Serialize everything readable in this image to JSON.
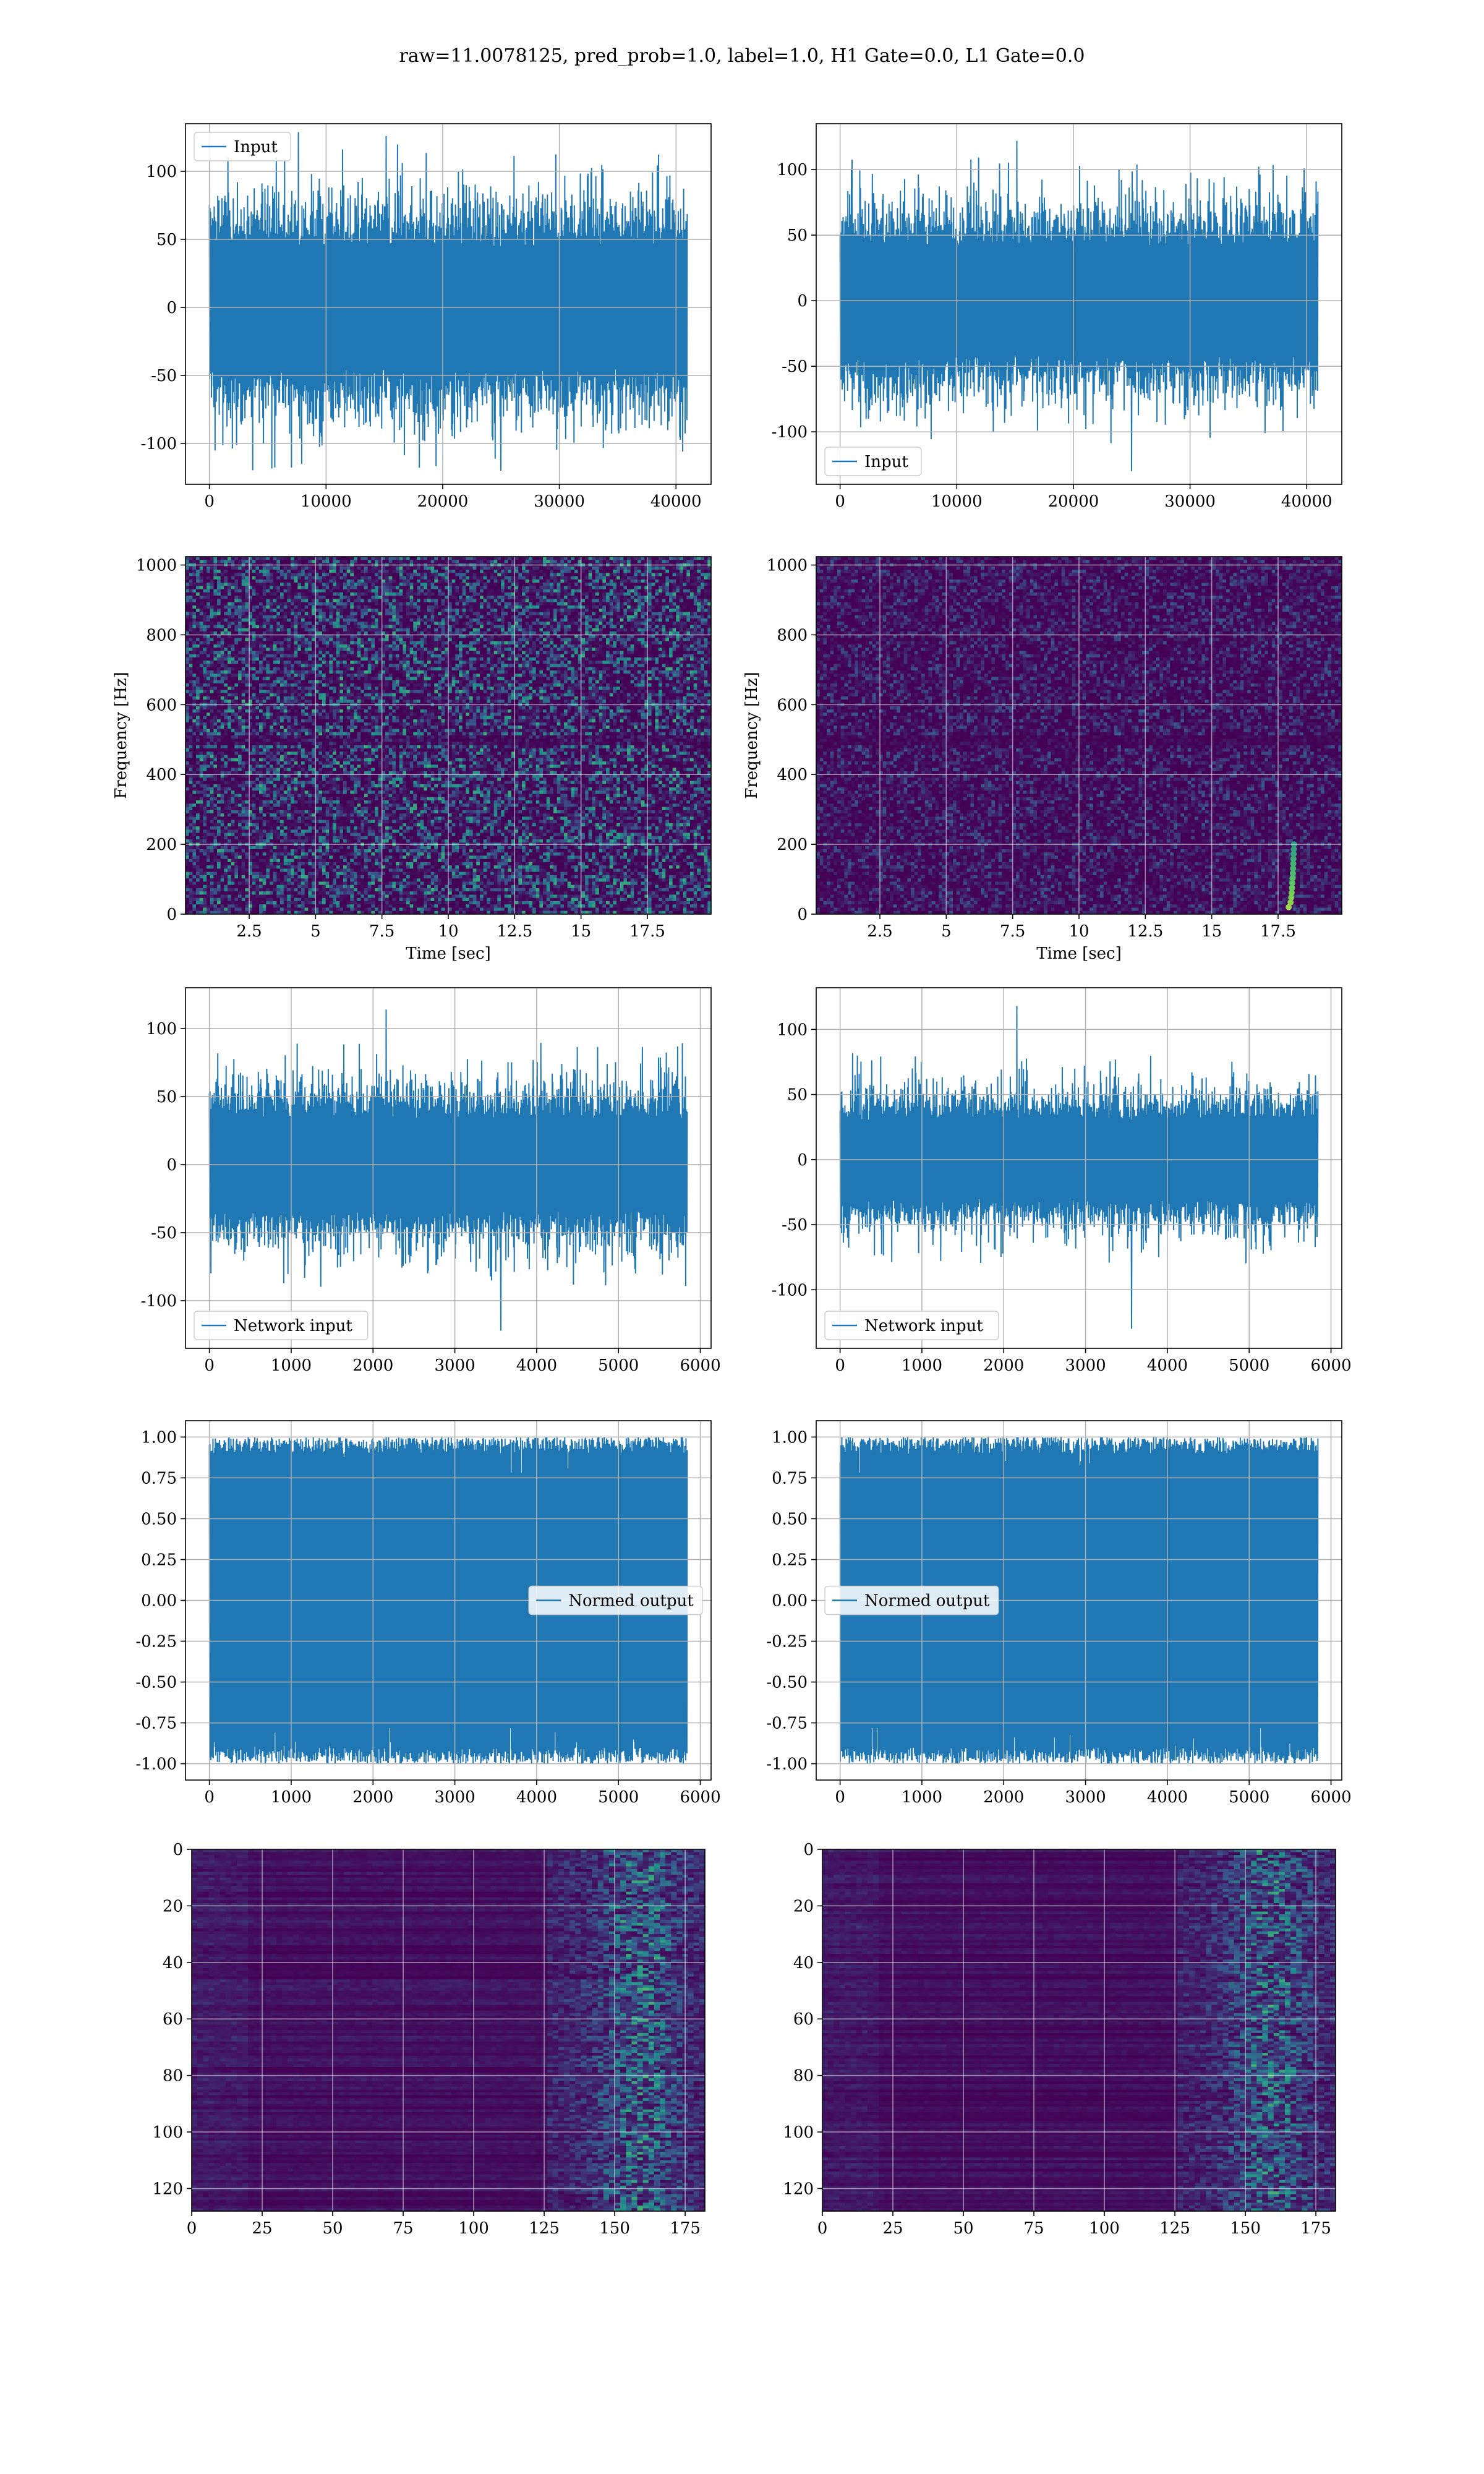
{
  "figure": {
    "suptitle": "raw=11.0078125, pred_prob=1.0, label=1.0, H1 Gate=0.0, L1 Gate=0.0"
  },
  "colors": {
    "series": "#1f77b4",
    "grid": "#b0b0b0",
    "viridis_dark": "#440154",
    "viridis_blue": "#3b528b",
    "viridis_teal": "#21918c",
    "viridis_green": "#5ec962",
    "viridis_yellow": "#fde725"
  },
  "chart_data": [
    {
      "type": "line",
      "row": 1,
      "col": 1,
      "series": [
        {
          "name": "Input",
          "x_range": [
            0,
            40960
          ],
          "amplitude_typical": 60,
          "peak_max": 126,
          "peak_min": -120
        }
      ],
      "legend": "top-left",
      "xlim": [
        -2048,
        43008
      ],
      "ylim": [
        -130,
        135
      ],
      "xticks": [
        0,
        10000,
        20000,
        30000,
        40000
      ],
      "yticks": [
        -100,
        -50,
        0,
        50,
        100
      ],
      "xlabel": "",
      "ylabel": "",
      "grid": true
    },
    {
      "type": "line",
      "row": 1,
      "col": 2,
      "series": [
        {
          "name": "Input",
          "x_range": [
            0,
            40960
          ],
          "amplitude_typical": 55,
          "peak_max": 122,
          "peak_min": -130
        }
      ],
      "legend": "bottom-left",
      "xlim": [
        -2048,
        43008
      ],
      "ylim": [
        -140,
        135
      ],
      "xticks": [
        0,
        10000,
        20000,
        30000,
        40000
      ],
      "yticks": [
        -100,
        -50,
        0,
        50,
        100
      ],
      "xlabel": "",
      "ylabel": "",
      "grid": true
    },
    {
      "type": "heatmap",
      "row": 2,
      "col": 1,
      "description_colormap": "viridis",
      "xlim": [
        0.1,
        19.9
      ],
      "ylim": [
        0,
        1024
      ],
      "xticks": [
        2.5,
        5.0,
        7.5,
        10.0,
        12.5,
        15.0,
        17.5
      ],
      "yticks": [
        0,
        200,
        400,
        600,
        800,
        1000
      ],
      "xlabel": "Time [sec]",
      "ylabel": "Frequency [Hz]",
      "grid": true,
      "chirp": null
    },
    {
      "type": "heatmap",
      "row": 2,
      "col": 2,
      "description_colormap": "viridis",
      "xlim": [
        0.1,
        19.9
      ],
      "ylim": [
        0,
        1024
      ],
      "xticks": [
        2.5,
        5.0,
        7.5,
        10.0,
        12.5,
        15.0,
        17.5
      ],
      "yticks": [
        0,
        200,
        400,
        600,
        800,
        1000
      ],
      "xlabel": "Time [sec]",
      "ylabel": "Frequency [Hz]",
      "grid": true,
      "chirp": {
        "t_start": 17.9,
        "t_end": 18.1,
        "f_start": 20,
        "f_end": 200
      }
    },
    {
      "type": "line",
      "row": 3,
      "col": 1,
      "series": [
        {
          "name": "Network input",
          "x_range": [
            0,
            5840
          ],
          "amplitude_typical": 45,
          "peak_max": 114,
          "peak_min": -122
        }
      ],
      "legend": "bottom-left",
      "xlim": [
        -292,
        6132
      ],
      "ylim": [
        -135,
        130
      ],
      "xticks": [
        0,
        1000,
        2000,
        3000,
        4000,
        5000,
        6000
      ],
      "yticks": [
        -100,
        -50,
        0,
        50,
        100
      ],
      "xlabel": "",
      "ylabel": "",
      "grid": true
    },
    {
      "type": "line",
      "row": 3,
      "col": 2,
      "series": [
        {
          "name": "Network input",
          "x_range": [
            0,
            5840
          ],
          "amplitude_typical": 40,
          "peak_max": 118,
          "peak_min": -130
        }
      ],
      "legend": "bottom-left",
      "xlim": [
        -292,
        6132
      ],
      "ylim": [
        -145,
        132
      ],
      "xticks": [
        0,
        1000,
        2000,
        3000,
        4000,
        5000,
        6000
      ],
      "yticks": [
        -100,
        -50,
        0,
        50,
        100
      ],
      "xlabel": "",
      "ylabel": "",
      "grid": true
    },
    {
      "type": "line",
      "row": 4,
      "col": 1,
      "series": [
        {
          "name": "Normed output",
          "x_range": [
            0,
            5840
          ],
          "amplitude_typical": 0.92,
          "peak_max": 1.0,
          "peak_min": -1.0
        }
      ],
      "legend": "center-right",
      "xlim": [
        -292,
        6132
      ],
      "ylim": [
        -1.1,
        1.1
      ],
      "xticks": [
        0,
        1000,
        2000,
        3000,
        4000,
        5000,
        6000
      ],
      "yticks": [
        -1.0,
        -0.75,
        -0.5,
        -0.25,
        0.0,
        0.25,
        0.5,
        0.75,
        1.0
      ],
      "xlabel": "",
      "ylabel": "",
      "grid": true
    },
    {
      "type": "line",
      "row": 4,
      "col": 2,
      "series": [
        {
          "name": "Normed output",
          "x_range": [
            0,
            5840
          ],
          "amplitude_typical": 0.92,
          "peak_max": 1.0,
          "peak_min": -1.0
        }
      ],
      "legend": "center-left",
      "xlim": [
        -292,
        6132
      ],
      "ylim": [
        -1.1,
        1.1
      ],
      "xticks": [
        0,
        1000,
        2000,
        3000,
        4000,
        5000,
        6000
      ],
      "yticks": [
        -1.0,
        -0.75,
        -0.5,
        -0.25,
        0.0,
        0.25,
        0.5,
        0.75,
        1.0
      ],
      "xlabel": "",
      "ylabel": "",
      "grid": true
    },
    {
      "type": "heatmap",
      "row": 5,
      "col": 1,
      "description_colormap": "viridis",
      "xlim": [
        0,
        182
      ],
      "ylim": [
        128,
        0
      ],
      "y_inverted": true,
      "xticks": [
        0,
        25,
        50,
        75,
        100,
        125,
        150,
        175
      ],
      "yticks": [
        0,
        20,
        40,
        60,
        80,
        100,
        120
      ],
      "xlabel": "",
      "ylabel": "",
      "grid": true,
      "active_band": [
        125,
        182
      ]
    },
    {
      "type": "heatmap",
      "row": 5,
      "col": 2,
      "description_colormap": "viridis",
      "xlim": [
        0,
        182
      ],
      "ylim": [
        128,
        0
      ],
      "y_inverted": true,
      "xticks": [
        0,
        25,
        50,
        75,
        100,
        125,
        150,
        175
      ],
      "yticks": [
        0,
        20,
        40,
        60,
        80,
        100,
        120
      ],
      "xlabel": "",
      "ylabel": "",
      "grid": true,
      "active_band": [
        125,
        182
      ]
    }
  ]
}
